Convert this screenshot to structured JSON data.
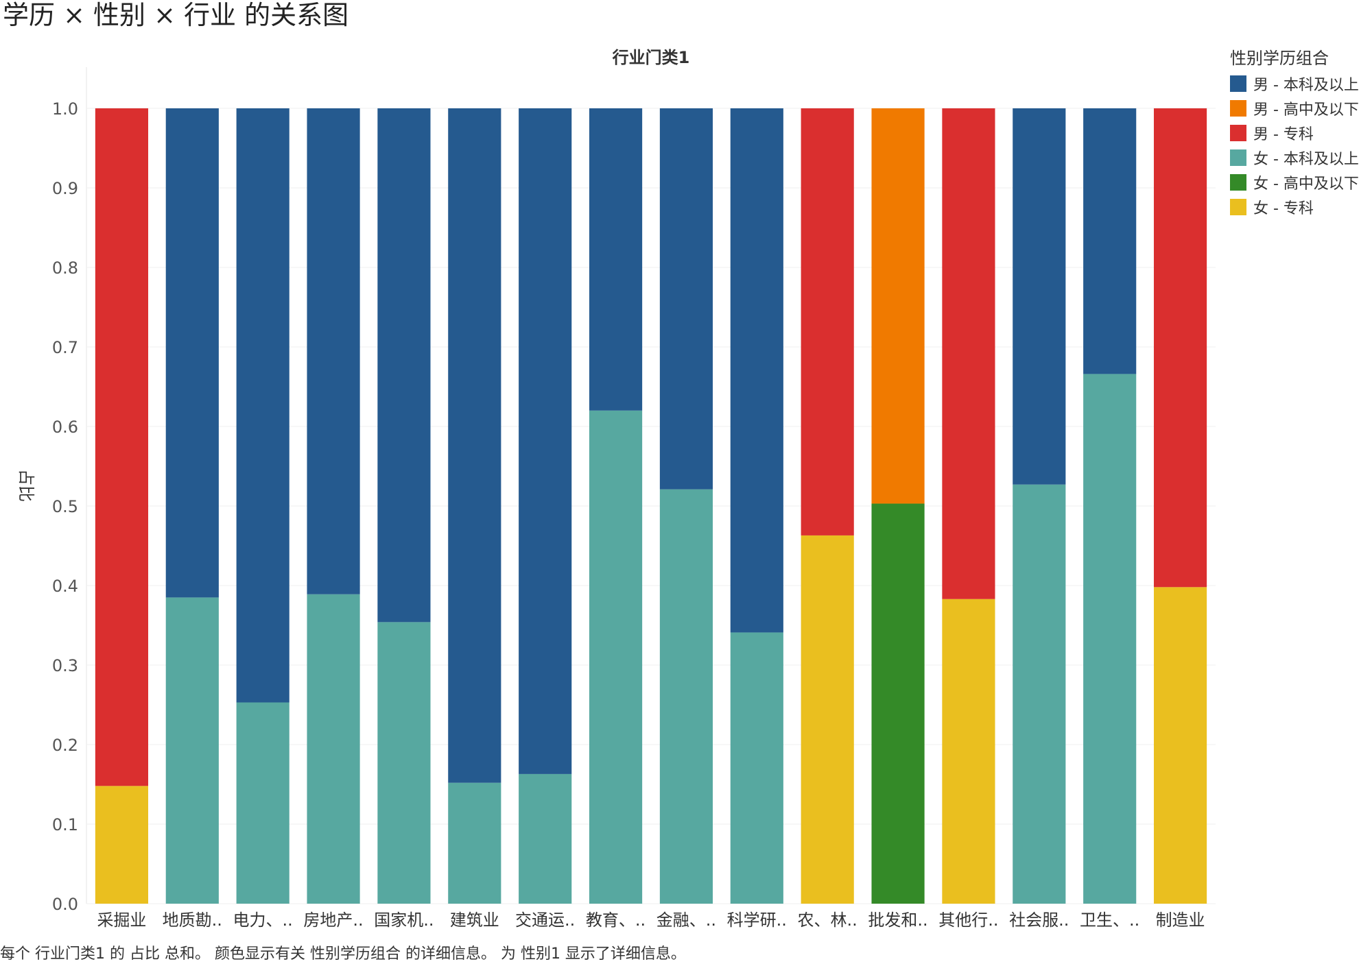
{
  "title": "学历 × 性别 × 行业 的关系图",
  "footnote": "每个 行业门类1 的 占比 总和。 颜色显示有关 性别学历组合 的详细信息。 为 性别1 显示了详细信息。",
  "legend": {
    "title": "性别学历组合",
    "items": [
      {
        "label": "男 - 本科及以上",
        "color": "#255A8F"
      },
      {
        "label": "男 - 高中及以下",
        "color": "#F07A00"
      },
      {
        "label": "男 - 专科",
        "color": "#DA2F2F"
      },
      {
        "label": "女 - 本科及以上",
        "color": "#57A8A0"
      },
      {
        "label": "女 - 高中及以下",
        "color": "#348A28"
      },
      {
        "label": "女 - 专科",
        "color": "#EABF1F"
      }
    ]
  },
  "chart_data": {
    "type": "bar",
    "stacked": true,
    "title": "行业门类1",
    "xlabel": "",
    "ylabel": "占比",
    "ylim": [
      0,
      1
    ],
    "yticks": [
      "0.0",
      "0.1",
      "0.2",
      "0.3",
      "0.4",
      "0.5",
      "0.6",
      "0.7",
      "0.8",
      "0.9",
      "1.0"
    ],
    "legend_position": "right",
    "categories": [
      "采掘业",
      "地质勘..",
      "电力、..",
      "房地产..",
      "国家机..",
      "建筑业",
      "交通运..",
      "教育、..",
      "金融、..",
      "科学研..",
      "农、林..",
      "批发和..",
      "其他行..",
      "社会服..",
      "卫生、..",
      "制造业"
    ],
    "series": [
      {
        "name": "女 - 专科",
        "color": "#EABF1F",
        "values": [
          0.148,
          0,
          0,
          0,
          0,
          0,
          0,
          0,
          0,
          0,
          0.463,
          0,
          0.383,
          0,
          0,
          0.398
        ]
      },
      {
        "name": "女 - 高中及以下",
        "color": "#348A28",
        "values": [
          0,
          0,
          0,
          0,
          0,
          0,
          0,
          0,
          0,
          0,
          0,
          0.503,
          0,
          0,
          0,
          0
        ]
      },
      {
        "name": "女 - 本科及以上",
        "color": "#57A8A0",
        "values": [
          0,
          0.385,
          0.253,
          0.389,
          0.354,
          0.152,
          0.163,
          0.62,
          0.521,
          0.341,
          0,
          0,
          0,
          0.527,
          0.666,
          0
        ]
      },
      {
        "name": "男 - 专科",
        "color": "#DA2F2F",
        "values": [
          0.852,
          0,
          0,
          0,
          0,
          0,
          0,
          0,
          0,
          0,
          0.537,
          0,
          0.617,
          0,
          0,
          0.602
        ]
      },
      {
        "name": "男 - 高中及以下",
        "color": "#F07A00",
        "values": [
          0,
          0,
          0,
          0,
          0,
          0,
          0,
          0,
          0,
          0,
          0,
          0.497,
          0,
          0,
          0,
          0
        ]
      },
      {
        "name": "男 - 本科及以上",
        "color": "#255A8F",
        "values": [
          0,
          0.615,
          0.747,
          0.611,
          0.646,
          0.848,
          0.837,
          0.38,
          0.479,
          0.659,
          0,
          0,
          0,
          0.473,
          0.334,
          0
        ]
      }
    ]
  }
}
